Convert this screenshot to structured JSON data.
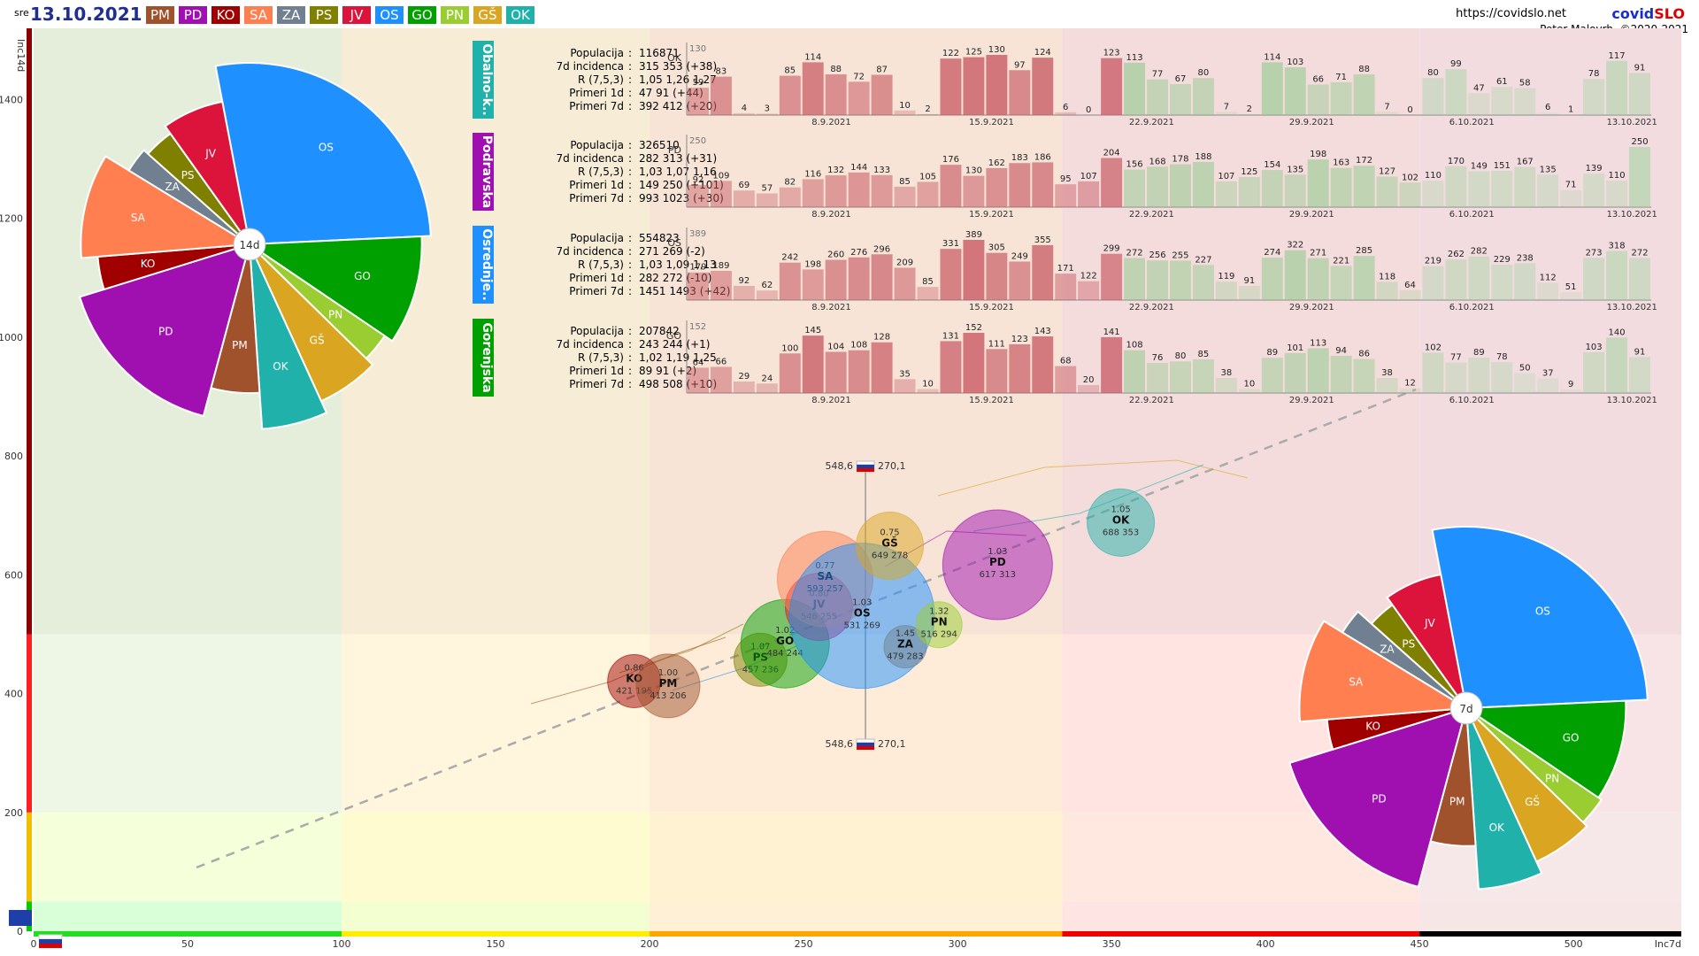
{
  "header": {
    "day_of_week": "sre",
    "date": "13.10.2021",
    "url": "https://covidslo.net",
    "brand_part1": "covid",
    "brand_part2": "SLO",
    "author": "Peter Malovrh, ©2020-2021",
    "region_buttons": [
      {
        "label": "PM",
        "color": "#a0522d"
      },
      {
        "label": "PD",
        "color": "#a010b0"
      },
      {
        "label": "KO",
        "color": "#a00000"
      },
      {
        "label": "SA",
        "color": "#ff7f50"
      },
      {
        "label": "ZA",
        "color": "#708090"
      },
      {
        "label": "PS",
        "color": "#808000"
      },
      {
        "label": "JV",
        "color": "#dc143c"
      },
      {
        "label": "OS",
        "color": "#1e90ff"
      },
      {
        "label": "GO",
        "color": "#00a000"
      },
      {
        "label": "PN",
        "color": "#9acd32"
      },
      {
        "label": "GŠ",
        "color": "#daa520"
      },
      {
        "label": "OK",
        "color": "#20b2aa"
      }
    ]
  },
  "chart_data": [
    {
      "type": "scatter",
      "description_label": "bubble",
      "xlabel": "Inc7d",
      "ylabel": "Inc14d",
      "xlim": [
        0,
        535
      ],
      "ylim": [
        0,
        1520
      ],
      "x_ticks": [
        0,
        50,
        100,
        150,
        200,
        250,
        300,
        350,
        400,
        450,
        500
      ],
      "y_ticks": [
        0,
        200,
        400,
        600,
        800,
        1000,
        1200,
        1400
      ],
      "national": {
        "label_top": "548,6",
        "label_right": "270,1",
        "x": 270.1,
        "y": 548.6
      },
      "points": [
        {
          "name": "KO",
          "r": "0.86",
          "inc7": 195,
          "inc14": 421,
          "x": 195,
          "y": 421,
          "size": 30,
          "color": "#a00000"
        },
        {
          "name": "PM",
          "r": "1.00",
          "inc7": 206,
          "inc14": 413,
          "x": 206,
          "y": 413,
          "size": 36,
          "color": "#a0522d"
        },
        {
          "name": "PS",
          "r": "1.07",
          "inc7": 236,
          "inc14": 457,
          "x": 236,
          "y": 457,
          "size": 30,
          "color": "#808000"
        },
        {
          "name": "GO",
          "r": "1.02",
          "inc7": 244,
          "inc14": 484,
          "x": 244,
          "y": 484,
          "size": 50,
          "color": "#00a000"
        },
        {
          "name": "JV",
          "r": "0.80",
          "inc7": 255,
          "inc14": 546,
          "x": 255,
          "y": 546,
          "size": 38,
          "color": "#dc143c"
        },
        {
          "name": "SA",
          "r": "0.77",
          "inc7": 257,
          "inc14": 593,
          "x": 257,
          "y": 593,
          "size": 54,
          "color": "#ff7f50"
        },
        {
          "name": "OS",
          "r": "1.03",
          "inc7": 269,
          "inc14": 531,
          "x": 269,
          "y": 531,
          "size": 82,
          "color": "#1e90ff"
        },
        {
          "name": "ZA",
          "r": "1.45",
          "inc7": 283,
          "inc14": 479,
          "x": 283,
          "y": 479,
          "size": 24,
          "color": "#708090"
        },
        {
          "name": "PN",
          "r": "1.32",
          "inc7": 294,
          "inc14": 516,
          "x": 294,
          "y": 516,
          "size": 26,
          "color": "#9acd32"
        },
        {
          "name": "GŠ",
          "r": "0.75",
          "inc7": 278,
          "inc14": 649,
          "x": 278,
          "y": 649,
          "size": 38,
          "color": "#daa520"
        },
        {
          "name": "PD",
          "r": "1.03",
          "inc7": 313,
          "inc14": 617,
          "x": 313,
          "y": 617,
          "size": 62,
          "color": "#a010b0"
        },
        {
          "name": "OK",
          "r": "1.05",
          "inc7": 353,
          "inc14": 688,
          "x": 353,
          "y": 688,
          "size": 38,
          "color": "#20b2aa"
        }
      ]
    },
    {
      "type": "pie",
      "center_label": "14d",
      "slices": [
        {
          "label": "OS",
          "value": 554823,
          "radius": 1.0,
          "color": "#1e90ff"
        },
        {
          "label": "GO",
          "value": 207842,
          "radius": 0.95,
          "color": "#00a000"
        },
        {
          "label": "PN",
          "value": 58000,
          "radius": 0.9,
          "color": "#9acd32"
        },
        {
          "label": "GŠ",
          "value": 119000,
          "radius": 0.95,
          "color": "#daa520"
        },
        {
          "label": "OK",
          "value": 116871,
          "radius": 1.02,
          "color": "#20b2aa"
        },
        {
          "label": "PM",
          "value": 107000,
          "radius": 0.82,
          "color": "#a0522d"
        },
        {
          "label": "PD",
          "value": 326510,
          "radius": 0.98,
          "color": "#a010b0"
        },
        {
          "label": "KO",
          "value": 71000,
          "radius": 0.84,
          "color": "#a00000"
        },
        {
          "label": "SA",
          "value": 204000,
          "radius": 0.93,
          "color": "#ff7f50"
        },
        {
          "label": "ZA",
          "value": 58000,
          "radius": 0.78,
          "color": "#708090"
        },
        {
          "label": "PS",
          "value": 72000,
          "radius": 0.75,
          "color": "#808000"
        },
        {
          "label": "JV",
          "value": 140000,
          "radius": 0.8,
          "color": "#dc143c"
        }
      ]
    },
    {
      "type": "pie",
      "center_label": "7d",
      "slices": [
        {
          "label": "OS",
          "value": 554823,
          "radius": 1.0,
          "color": "#1e90ff"
        },
        {
          "label": "GO",
          "value": 207842,
          "radius": 0.88,
          "color": "#00a000"
        },
        {
          "label": "PN",
          "value": 58000,
          "radius": 0.9,
          "color": "#9acd32"
        },
        {
          "label": "GŠ",
          "value": 119000,
          "radius": 0.93,
          "color": "#daa520"
        },
        {
          "label": "OK",
          "value": 116871,
          "radius": 1.0,
          "color": "#20b2aa"
        },
        {
          "label": "PM",
          "value": 107000,
          "radius": 0.76,
          "color": "#a0522d"
        },
        {
          "label": "PD",
          "value": 326510,
          "radius": 1.02,
          "color": "#a010b0"
        },
        {
          "label": "KO",
          "value": 71000,
          "radius": 0.77,
          "color": "#a00000"
        },
        {
          "label": "SA",
          "value": 204000,
          "radius": 0.92,
          "color": "#ff7f50"
        },
        {
          "label": "ZA",
          "value": 58000,
          "radius": 0.8,
          "color": "#708090"
        },
        {
          "label": "PS",
          "value": 72000,
          "radius": 0.7,
          "color": "#808000"
        },
        {
          "label": "JV",
          "value": 140000,
          "radius": 0.75,
          "color": "#dc143c"
        }
      ]
    },
    {
      "type": "bar",
      "region_name": "Obalno-k..",
      "code": "OK",
      "ymax_label": "130",
      "color": "#20b2aa",
      "info": {
        "populacija": "116871",
        "incidenca": "315 353 (+38)",
        "r": "1,05 1,26 1,27",
        "primeri_1d": "47 91 (+44)",
        "primeri_7d": "392 412 (+20)"
      },
      "values": [
        59,
        83,
        4,
        3,
        85,
        114,
        88,
        72,
        87,
        10,
        2,
        122,
        125,
        130,
        97,
        124,
        6,
        0,
        123,
        113,
        77,
        67,
        80,
        7,
        2,
        114,
        103,
        66,
        71,
        88,
        7,
        0,
        80,
        99,
        47,
        61,
        58,
        6,
        1,
        78,
        117,
        91
      ],
      "x_tick_labels": [
        "8.9.2021",
        "15.9.2021",
        "22.9.2021",
        "29.9.2021",
        "6.10.2021",
        "13.10.2021"
      ]
    },
    {
      "type": "bar",
      "region_name": "Podravska",
      "code": "PD",
      "ymax_label": "250",
      "color": "#a010b0",
      "info": {
        "populacija": "326510",
        "incidenca": "282 313 (+31)",
        "r": "1,03 1,07 1,16",
        "primeri_1d": "149 250 (+101)",
        "primeri_7d": "993 1023 (+30)"
      },
      "values": [
        92,
        109,
        69,
        57,
        82,
        116,
        132,
        144,
        133,
        85,
        105,
        176,
        130,
        162,
        183,
        186,
        95,
        107,
        204,
        156,
        168,
        178,
        188,
        107,
        125,
        154,
        135,
        198,
        163,
        172,
        127,
        102,
        110,
        170,
        149,
        151,
        167,
        135,
        71,
        139,
        110,
        250
      ],
      "x_tick_labels": [
        "8.9.2021",
        "15.9.2021",
        "22.9.2021",
        "29.9.2021",
        "6.10.2021",
        "13.10.2021"
      ]
    },
    {
      "type": "bar",
      "region_name": "Osrednje..",
      "code": "OS",
      "ymax_label": "389",
      "color": "#1e90ff",
      "info": {
        "populacija": "554823",
        "incidenca": "271 269 (-2)",
        "r": "1,03 1,09 1,13",
        "primeri_1d": "282 272 (-10)",
        "primeri_7d": "1451 1493 (+42)"
      },
      "values": [
        179,
        189,
        92,
        62,
        242,
        198,
        260,
        276,
        296,
        209,
        85,
        331,
        389,
        305,
        249,
        355,
        171,
        122,
        299,
        272,
        256,
        255,
        227,
        119,
        91,
        274,
        322,
        271,
        221,
        285,
        118,
        64,
        219,
        262,
        282,
        229,
        238,
        112,
        51,
        273,
        318,
        272
      ],
      "x_tick_labels": [
        "8.9.2021",
        "15.9.2021",
        "22.9.2021",
        "29.9.2021",
        "6.10.2021",
        "13.10.2021"
      ]
    },
    {
      "type": "bar",
      "region_name": "Gorenjska",
      "code": "GO",
      "ymax_label": "152",
      "color": "#00a000",
      "info": {
        "populacija": "207842",
        "incidenca": "243 244 (+1)",
        "r": "1,02 1,19 1,25",
        "primeri_1d": "89 91 (+2)",
        "primeri_7d": "498 508 (+10)"
      },
      "values": [
        64,
        66,
        29,
        24,
        100,
        145,
        104,
        108,
        128,
        35,
        10,
        131,
        152,
        111,
        123,
        143,
        68,
        20,
        141,
        108,
        76,
        80,
        85,
        38,
        10,
        89,
        101,
        113,
        94,
        86,
        38,
        12,
        102,
        77,
        89,
        78,
        50,
        37,
        9,
        103,
        140,
        91
      ],
      "x_tick_labels": [
        "8.9.2021",
        "15.9.2021",
        "22.9.2021",
        "29.9.2021",
        "6.10.2021",
        "13.10.2021"
      ]
    }
  ],
  "info_labels": {
    "populacija": "Populacija",
    "incidenca": "7d incidenca",
    "r": "R (7,5,3)",
    "primeri_1d": "Primeri 1d",
    "primeri_7d": "Primeri 7d"
  }
}
